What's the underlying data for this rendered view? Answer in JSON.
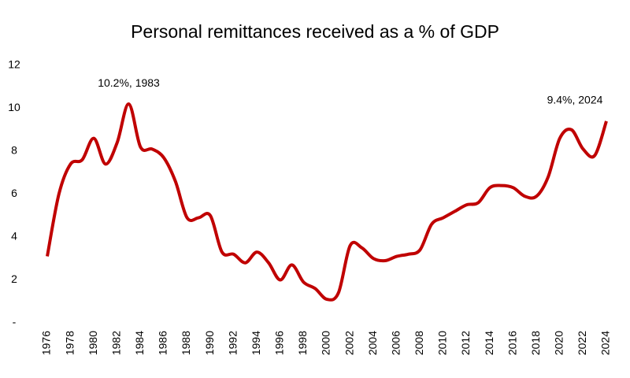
{
  "chart_data": {
    "type": "line",
    "title": "Personal remittances received as a % of GDP",
    "x": [
      1976,
      1977,
      1978,
      1979,
      1980,
      1981,
      1982,
      1983,
      1984,
      1985,
      1986,
      1987,
      1988,
      1989,
      1990,
      1991,
      1992,
      1993,
      1994,
      1995,
      1996,
      1997,
      1998,
      1999,
      2000,
      2001,
      2002,
      2003,
      2004,
      2005,
      2006,
      2007,
      2008,
      2009,
      2010,
      2011,
      2012,
      2013,
      2014,
      2015,
      2016,
      2017,
      2018,
      2019,
      2020,
      2021,
      2022,
      2023,
      2024
    ],
    "series": [
      {
        "color": "#c00000",
        "values": [
          3.1,
          6.0,
          7.4,
          7.6,
          8.6,
          7.4,
          8.4,
          10.2,
          8.2,
          8.1,
          7.7,
          6.6,
          4.9,
          4.9,
          5.0,
          3.3,
          3.2,
          2.8,
          3.3,
          2.8,
          2.0,
          2.7,
          1.9,
          1.6,
          1.1,
          1.4,
          3.6,
          3.5,
          3.0,
          2.9,
          3.1,
          3.2,
          3.4,
          4.6,
          4.9,
          5.2,
          5.5,
          5.6,
          6.3,
          6.4,
          6.3,
          5.9,
          5.9,
          6.8,
          8.6,
          9.0,
          8.1,
          7.8,
          9.4
        ]
      }
    ],
    "xlim": [
      1976,
      2024
    ],
    "xticks": [
      1976,
      1978,
      1980,
      1982,
      1984,
      1986,
      1988,
      1990,
      1992,
      1994,
      1996,
      1998,
      2000,
      2002,
      2004,
      2006,
      2008,
      2010,
      2012,
      2014,
      2016,
      2018,
      2020,
      2022,
      2024
    ],
    "ylim": [
      0,
      12
    ],
    "yticks": [
      {
        "value": 0,
        "label": "-"
      },
      2,
      4,
      6,
      8,
      10,
      12
    ],
    "annotations": [
      {
        "text": "10.2%, 1983",
        "x": 1983,
        "y": 10.2
      },
      {
        "text": "9.4%, 2024",
        "x": 2024,
        "y": 9.4
      }
    ]
  }
}
